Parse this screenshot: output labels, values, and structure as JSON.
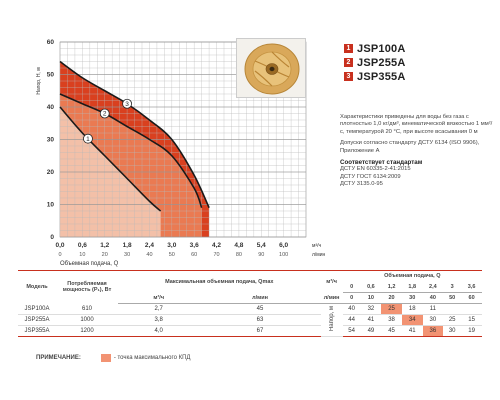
{
  "chart_data": {
    "type": "line",
    "xlabel": "Объемная подача, Q",
    "x_units": [
      "м³/ч",
      "л/мин"
    ],
    "ylabel": "Напор, H, м",
    "xlim": [
      0,
      6.6
    ],
    "ylim": [
      0,
      60
    ],
    "x_ticks_m3h": [
      "0,0",
      "0,6",
      "1,2",
      "1,8",
      "2,4",
      "3,0",
      "3,6",
      "4,2",
      "4,8",
      "5,4",
      "6,0"
    ],
    "x_ticks_lmin": [
      "0",
      "10",
      "20",
      "30",
      "40",
      "50",
      "60",
      "70",
      "80",
      "90",
      "100"
    ],
    "y_ticks": [
      "0",
      "10",
      "20",
      "30",
      "40",
      "50",
      "60"
    ],
    "grid": true,
    "series": [
      {
        "label": "1",
        "name": "JSP100A",
        "color": "#f3c0a8",
        "x": [
          0,
          0.6,
          1.2,
          1.8,
          2.4,
          2.7
        ],
        "y": [
          40,
          32,
          25,
          18,
          11,
          8
        ]
      },
      {
        "label": "2",
        "name": "JSP255A",
        "color": "#ea7a52",
        "x": [
          0,
          0.6,
          1.2,
          1.8,
          2.4,
          3.0,
          3.6,
          3.8
        ],
        "y": [
          44,
          41,
          38,
          34,
          30,
          25,
          15,
          9
        ]
      },
      {
        "label": "3",
        "name": "JSP355A",
        "color": "#d9401f",
        "x": [
          0,
          0.6,
          1.2,
          1.8,
          2.4,
          3.0,
          3.6,
          4.0
        ],
        "y": [
          54,
          49,
          45,
          41,
          36,
          30,
          19,
          9
        ]
      }
    ]
  },
  "legend": [
    {
      "num": "1",
      "label": "JSP100A"
    },
    {
      "num": "2",
      "label": "JSP255A"
    },
    {
      "num": "3",
      "label": "JSP355A"
    }
  ],
  "notes": {
    "p1": "Характеристики приведены для воды без газа с плотностью 1,0 кг/дм³, кинематической вязкостью 1 мм²/с, температурой 20 °С, при высоте всасывания 0 м",
    "p2": "Допуски согласно стандарту ДСТУ 6134 (ISO 9906), Приложение А",
    "std_title": "Соответствует стандартам",
    "std1": "ДСТУ EN 60335-2-41:2015",
    "std2": "ДСТУ ГОСТ 6134:2009",
    "std3": "ДСТУ 3135.0-95"
  },
  "table": {
    "col_model": "Модель",
    "col_power": "Потребляемая мощность (P₁), Вт",
    "col_maxflow": "Максимальная объемная подача, Qmax",
    "col_flow": "Объемная подача, Q",
    "unit_m3h": "м³/ч",
    "unit_lmin": "л/мин",
    "head_label": "Напор, м",
    "q_m3h": [
      "0",
      "0,6",
      "1,2",
      "1,8",
      "2,4",
      "3",
      "3,6"
    ],
    "q_lmin": [
      "0",
      "10",
      "20",
      "30",
      "40",
      "50",
      "60"
    ],
    "rows": [
      {
        "model": "JSP100A",
        "power": "610",
        "qmax_m3h": "2,7",
        "qmax_lmin": "45",
        "h": [
          "40",
          "32",
          "25",
          "18",
          "11",
          "",
          ""
        ]
      },
      {
        "model": "JSP255A",
        "power": "1000",
        "qmax_m3h": "3,8",
        "qmax_lmin": "63",
        "h": [
          "44",
          "41",
          "38",
          "34",
          "30",
          "25",
          "15"
        ]
      },
      {
        "model": "JSP355A",
        "power": "1200",
        "qmax_m3h": "4,0",
        "qmax_lmin": "67",
        "h": [
          "54",
          "49",
          "45",
          "41",
          "36",
          "30",
          "19"
        ]
      }
    ],
    "highlight_color": "#f29373"
  },
  "footnote": {
    "title": "ПРИМЕЧАНИЕ:",
    "text": "- точка максимального КПД"
  }
}
